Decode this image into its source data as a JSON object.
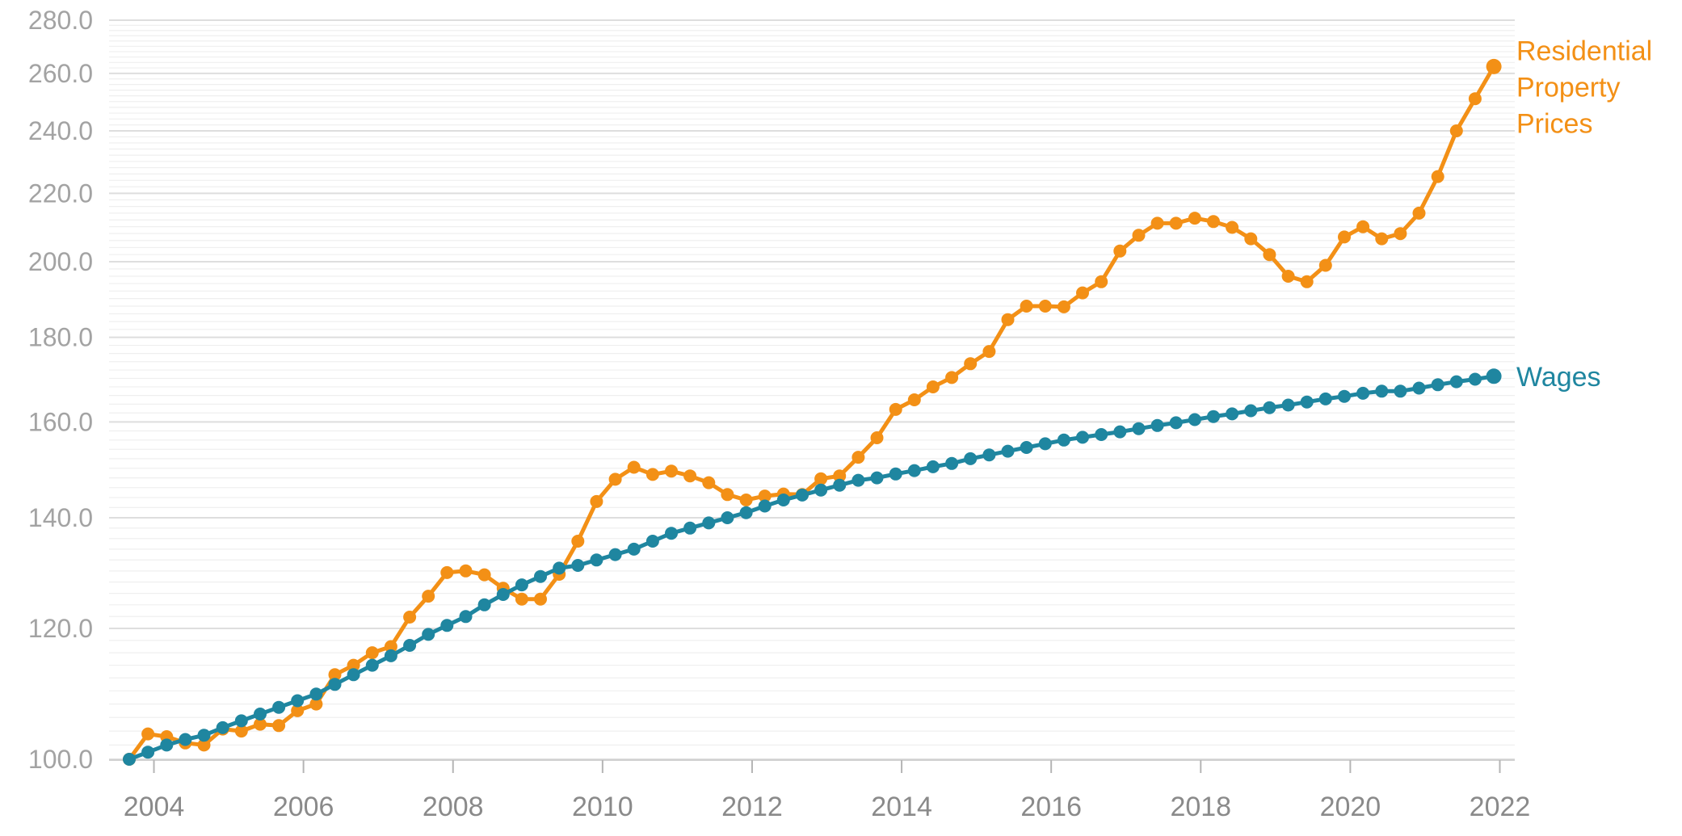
{
  "chart_data": {
    "type": "line",
    "y_scale": "log",
    "ylim": [
      100,
      280
    ],
    "y_ticks": [
      "100.0",
      "120.0",
      "140.0",
      "160.0",
      "180.0",
      "200.0",
      "220.0",
      "240.0",
      "260.0",
      "280.0"
    ],
    "y_tick_values": [
      100,
      120,
      140,
      160,
      180,
      200,
      220,
      240,
      260,
      280
    ],
    "x_ticks": [
      "2004",
      "2006",
      "2008",
      "2010",
      "2012",
      "2014",
      "2016",
      "2018",
      "2020",
      "2022"
    ],
    "x_tick_values": [
      2004,
      2006,
      2008,
      2010,
      2012,
      2014,
      2016,
      2018,
      2020,
      2022
    ],
    "xlim": [
      2003.4,
      2022.2
    ],
    "grid": true,
    "legend": "labels at line ends, right",
    "series": [
      {
        "name": "Residential Property Prices",
        "label_lines": [
          "Residential",
          "Property",
          "Prices"
        ],
        "color": "#f39016",
        "x": [
          2003.67,
          2003.92,
          2004.17,
          2004.42,
          2004.67,
          2004.92,
          2005.17,
          2005.42,
          2005.67,
          2005.92,
          2006.17,
          2006.42,
          2006.67,
          2006.92,
          2007.17,
          2007.42,
          2007.67,
          2007.92,
          2008.17,
          2008.42,
          2008.67,
          2008.92,
          2009.17,
          2009.42,
          2009.67,
          2009.92,
          2010.17,
          2010.42,
          2010.67,
          2010.92,
          2011.17,
          2011.42,
          2011.67,
          2011.92,
          2012.17,
          2012.42,
          2012.67,
          2012.92,
          2013.17,
          2013.42,
          2013.67,
          2013.92,
          2014.17,
          2014.42,
          2014.67,
          2014.92,
          2015.17,
          2015.42,
          2015.67,
          2015.92,
          2016.17,
          2016.42,
          2016.67,
          2016.92,
          2017.17,
          2017.42,
          2017.67,
          2017.92,
          2018.17,
          2018.42,
          2018.67,
          2018.92,
          2019.17,
          2019.42,
          2019.67,
          2019.92,
          2020.17,
          2020.42,
          2020.67,
          2020.92,
          2021.17,
          2021.42,
          2021.67,
          2021.92
        ],
        "values": [
          100.0,
          103.6,
          103.2,
          102.3,
          102.0,
          104.3,
          104.0,
          105.0,
          104.8,
          107.0,
          108.0,
          112.5,
          114.0,
          116.0,
          117.0,
          121.9,
          125.5,
          129.7,
          130.0,
          129.3,
          126.9,
          125.0,
          125.0,
          129.4,
          135.5,
          143.2,
          147.7,
          150.2,
          148.7,
          149.4,
          148.4,
          147.0,
          144.6,
          143.5,
          144.3,
          144.7,
          144.6,
          147.8,
          148.4,
          152.3,
          156.5,
          162.8,
          165.0,
          168.0,
          170.2,
          173.5,
          176.5,
          184.5,
          188.0,
          188.0,
          187.8,
          191.5,
          194.5,
          203.0,
          207.5,
          211.0,
          211.0,
          212.5,
          211.5,
          209.8,
          206.5,
          202.0,
          196.0,
          194.5,
          199.0,
          207.0,
          210.0,
          206.5,
          208.0,
          214.0,
          225.2,
          240.0,
          251.0,
          262.5
        ]
      },
      {
        "name": "Wages",
        "label_lines": [
          "Wages"
        ],
        "color": "#1f86a0",
        "x": [
          2003.67,
          2003.92,
          2004.17,
          2004.42,
          2004.67,
          2004.92,
          2005.17,
          2005.42,
          2005.67,
          2005.92,
          2006.17,
          2006.42,
          2006.67,
          2006.92,
          2007.17,
          2007.42,
          2007.67,
          2007.92,
          2008.17,
          2008.42,
          2008.67,
          2008.92,
          2009.17,
          2009.42,
          2009.67,
          2009.92,
          2010.17,
          2010.42,
          2010.67,
          2010.92,
          2011.17,
          2011.42,
          2011.67,
          2011.92,
          2012.17,
          2012.42,
          2012.67,
          2012.92,
          2013.17,
          2013.42,
          2013.67,
          2013.92,
          2014.17,
          2014.42,
          2014.67,
          2014.92,
          2015.17,
          2015.42,
          2015.67,
          2015.92,
          2016.17,
          2016.42,
          2016.67,
          2016.92,
          2017.17,
          2017.42,
          2017.67,
          2017.92,
          2018.17,
          2018.42,
          2018.67,
          2018.92,
          2019.17,
          2019.42,
          2019.67,
          2019.92,
          2020.17,
          2020.42,
          2020.67,
          2020.92,
          2021.17,
          2021.42,
          2021.67,
          2021.92
        ],
        "values": [
          100.0,
          101.0,
          102.0,
          102.8,
          103.4,
          104.5,
          105.5,
          106.5,
          107.5,
          108.5,
          109.5,
          111.0,
          112.5,
          114.0,
          115.5,
          117.2,
          119.0,
          120.5,
          122.0,
          124.0,
          125.8,
          127.5,
          129.0,
          130.5,
          131.0,
          132.0,
          133.0,
          134.0,
          135.5,
          137.0,
          138.0,
          139.0,
          140.0,
          141.0,
          142.3,
          143.5,
          144.5,
          145.5,
          146.5,
          147.5,
          148.0,
          148.8,
          149.5,
          150.3,
          151.0,
          152.0,
          152.8,
          153.6,
          154.4,
          155.2,
          156.0,
          156.6,
          157.2,
          157.8,
          158.5,
          159.2,
          159.8,
          160.5,
          161.2,
          161.8,
          162.5,
          163.2,
          163.8,
          164.5,
          165.2,
          165.8,
          166.5,
          167.0,
          167.0,
          167.7,
          168.5,
          169.2,
          169.8,
          170.5
        ]
      }
    ]
  }
}
